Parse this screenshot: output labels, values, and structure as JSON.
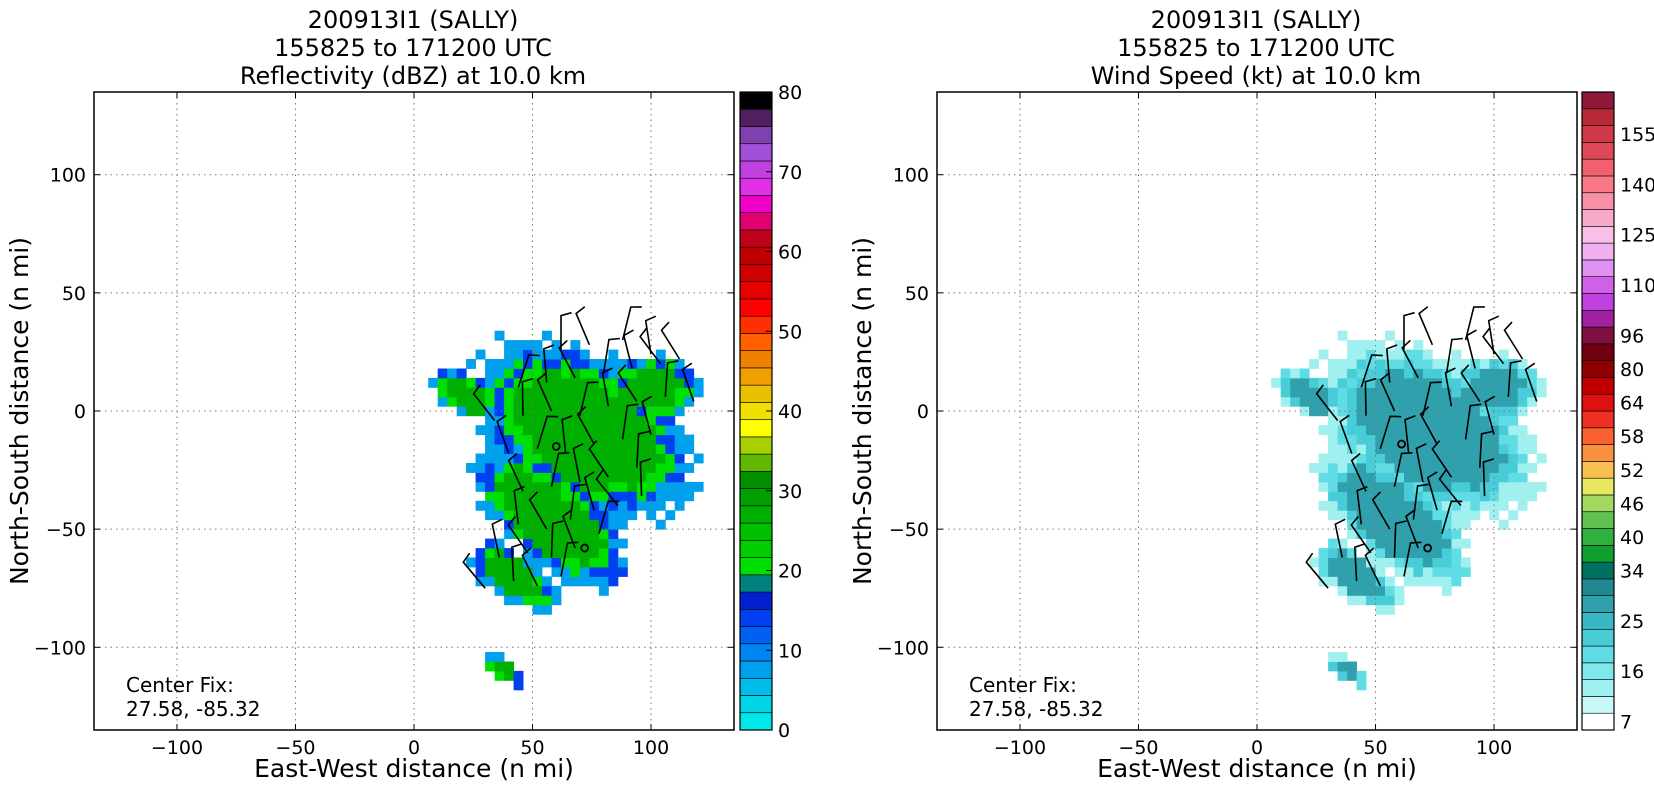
{
  "chart_data": [
    {
      "type": "heatmap",
      "title": [
        "200913I1 (SALLY)",
        "155825 to 171200 UTC",
        "Reflectivity (dBZ) at 10.0 km"
      ],
      "xlabel": "East-West distance (n mi)",
      "ylabel": "North-South distance (n mi)",
      "xlim": [
        -135,
        135
      ],
      "ylim": [
        -135,
        135
      ],
      "xticks": [
        -100,
        -50,
        0,
        50,
        100
      ],
      "yticks": [
        -100,
        -50,
        0,
        50,
        100
      ],
      "grid": true,
      "annotation": [
        "Center Fix:",
        "27.58, -85.32"
      ],
      "center_marks": [
        [
          60,
          -15
        ],
        [
          72,
          -58
        ]
      ],
      "colorbar": {
        "min": 0,
        "max": 80,
        "tick_labels": [
          "0",
          "10",
          "20",
          "30",
          "40",
          "50",
          "60",
          "70",
          "80"
        ],
        "tick_values": [
          0,
          10,
          20,
          30,
          40,
          50,
          60,
          70,
          80
        ],
        "colors": [
          "#00e8e8",
          "#00d4e4",
          "#00bce8",
          "#00a0ec",
          "#0084f0",
          "#0060f4",
          "#0040f0",
          "#0020d0",
          "#008080",
          "#00e000",
          "#00d000",
          "#00c000",
          "#00b000",
          "#00a000",
          "#009000",
          "#60b800",
          "#a8d000",
          "#ffff00",
          "#f0e000",
          "#e8c000",
          "#f0a000",
          "#f08000",
          "#ff6000",
          "#ff3000",
          "#ff0000",
          "#e80000",
          "#d00000",
          "#c00000",
          "#c00018",
          "#e00070",
          "#f000c8",
          "#e030e8",
          "#c040e0",
          "#a050d8",
          "#8040b0",
          "#502060",
          "#000000"
        ]
      },
      "field_levels": {
        "0.5": "#00a0ec",
        "0.7": "#0040f0",
        "0.85": "#00e000",
        "1.0": "#00b000"
      }
    },
    {
      "type": "heatmap",
      "title": [
        "200913I1 (SALLY)",
        "155825 to 171200 UTC",
        "Wind Speed (kt) at 10.0 km"
      ],
      "xlabel": "East-West distance (n mi)",
      "ylabel": "North-South distance (n mi)",
      "xlim": [
        -135,
        135
      ],
      "ylim": [
        -135,
        135
      ],
      "xticks": [
        -100,
        -50,
        0,
        50,
        100
      ],
      "yticks": [
        -100,
        -50,
        0,
        50,
        100
      ],
      "grid": true,
      "annotation": [
        "Center Fix:",
        "27.58, -85.32"
      ],
      "center_marks": [
        [
          61,
          -14
        ],
        [
          72,
          -58
        ]
      ],
      "colorbar": {
        "tick_labels": [
          "7",
          "16",
          "25",
          "34",
          "40",
          "46",
          "52",
          "58",
          "64",
          "80",
          "96",
          "110",
          "125",
          "140",
          "155"
        ],
        "colors": [
          "#ffffff",
          "#c8f8f8",
          "#a0f0f0",
          "#80e8ec",
          "#60dce4",
          "#48ccd8",
          "#38b8c4",
          "#30a0ac",
          "#208890",
          "#007060",
          "#10a030",
          "#30b040",
          "#60c050",
          "#a0d860",
          "#e8e860",
          "#f8c050",
          "#f89040",
          "#f86030",
          "#f03020",
          "#e01010",
          "#c00000",
          "#900000",
          "#700010",
          "#801040",
          "#a020a0",
          "#c040e0",
          "#d060e8",
          "#e090f0",
          "#f0b0f0",
          "#f8c0e8",
          "#f8a8c8",
          "#f890a8",
          "#f87888",
          "#f06070",
          "#e04858",
          "#d03848",
          "#b82838",
          "#901838"
        ],
        "label_cells": [
          0,
          3,
          6,
          9,
          11,
          13,
          15,
          17,
          19,
          21,
          23,
          26,
          29,
          32,
          35
        ]
      },
      "field_levels": {
        "0.5": "#a0f0f0",
        "0.7": "#60dce4",
        "0.85": "#48ccd8",
        "1.0": "#30a0ac"
      }
    }
  ],
  "wind_barbs": [
    [
      30,
      -75
    ],
    [
      42,
      -72
    ],
    [
      52,
      -74
    ],
    [
      62,
      -70
    ],
    [
      36,
      -62
    ],
    [
      48,
      -60
    ],
    [
      58,
      -62
    ],
    [
      68,
      -58
    ],
    [
      78,
      -52
    ],
    [
      44,
      -48
    ],
    [
      56,
      -50
    ],
    [
      66,
      -46
    ],
    [
      76,
      -42
    ],
    [
      86,
      -40
    ],
    [
      96,
      -36
    ],
    [
      46,
      -34
    ],
    [
      58,
      -32
    ],
    [
      70,
      -30
    ],
    [
      82,
      -28
    ],
    [
      94,
      -24
    ],
    [
      40,
      -18
    ],
    [
      52,
      -16
    ],
    [
      64,
      -18
    ],
    [
      76,
      -14
    ],
    [
      88,
      -12
    ],
    [
      100,
      -10
    ],
    [
      34,
      -4
    ],
    [
      46,
      -2
    ],
    [
      58,
      0
    ],
    [
      70,
      -2
    ],
    [
      82,
      2
    ],
    [
      94,
      4
    ],
    [
      106,
      6
    ],
    [
      118,
      4
    ],
    [
      44,
      10
    ],
    [
      56,
      12
    ],
    [
      68,
      14
    ],
    [
      80,
      16
    ],
    [
      92,
      18
    ],
    [
      104,
      20
    ],
    [
      62,
      26
    ],
    [
      74,
      28
    ],
    [
      88,
      30
    ],
    [
      100,
      24
    ],
    [
      112,
      22
    ]
  ]
}
